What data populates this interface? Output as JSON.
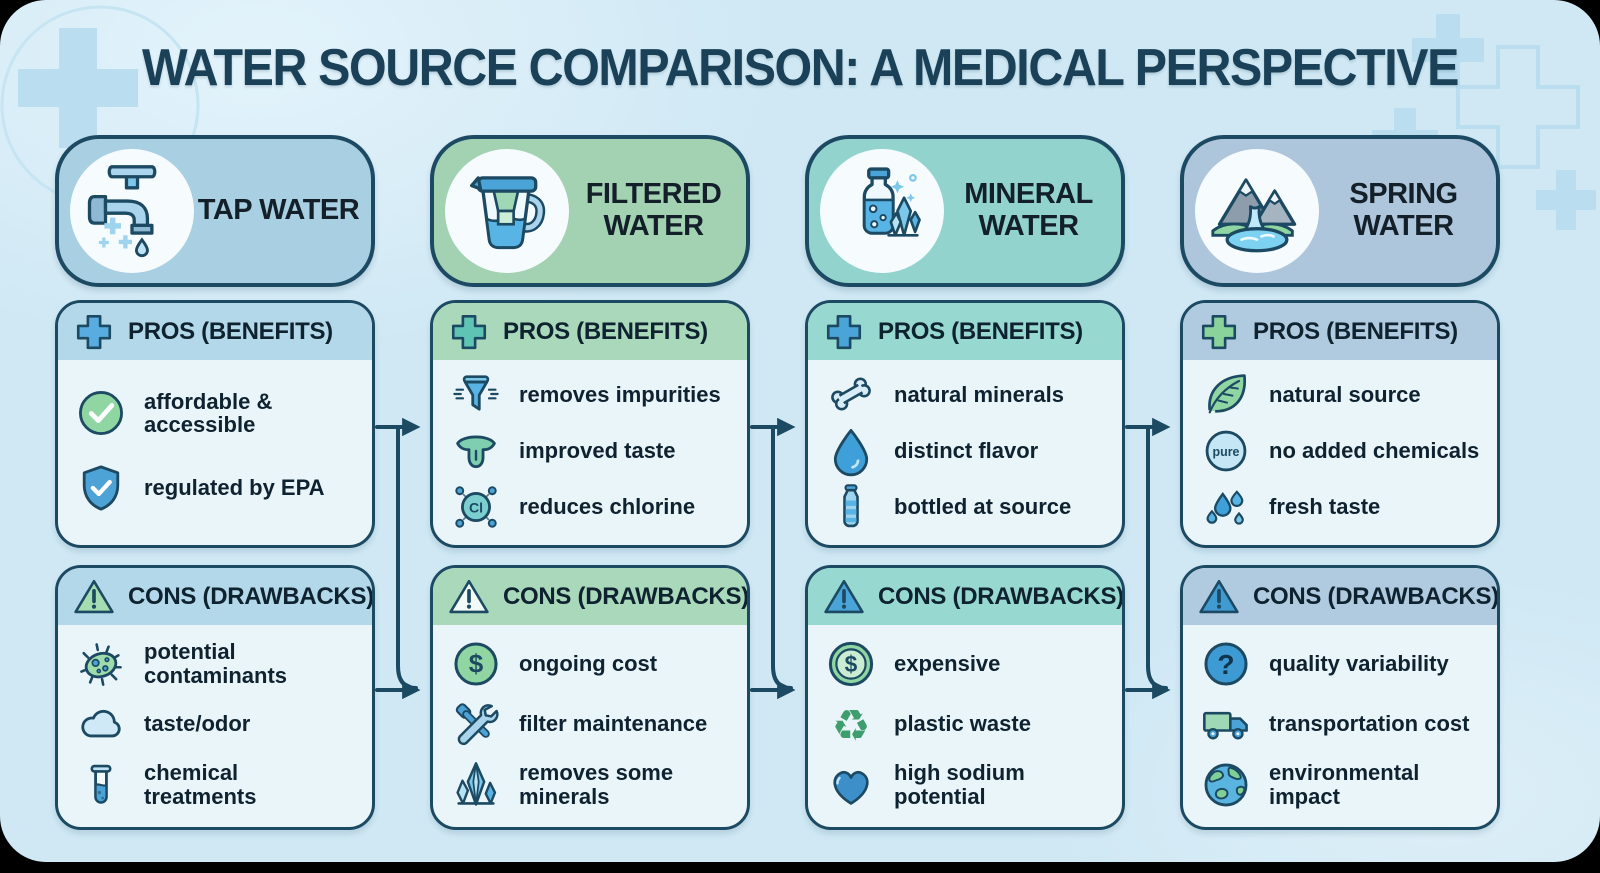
{
  "title": "WATER SOURCE COMPARISON: A MEDICAL PERSPECTIVE",
  "section_labels": {
    "pros": "PROS (BENEFITS)",
    "cons": "CONS (DRAWBACKS)"
  },
  "icon_labels": {
    "chlorine": "Cl",
    "pure": "pure",
    "dollar": "$",
    "question": "?",
    "recycle": "♻"
  },
  "colors": {
    "background": "#cfe8f4",
    "outline": "#1d4a63",
    "title_text": "#1a4157",
    "body_text": "#0f2230",
    "box_bg": "#eaf5f9"
  },
  "columns": [
    {
      "id": "tap-water",
      "name": "TAP WATER",
      "header_icon": "faucet-icon",
      "theme": {
        "header_bg": "#a9cfe2",
        "band_bg": "#b3d8e9",
        "cross_color": "#58ace0",
        "triangle_color": "#a5dcb0"
      },
      "pros": [
        {
          "icon": "check-circle-icon",
          "text": "affordable & accessible"
        },
        {
          "icon": "shield-check-icon",
          "text": "regulated by EPA"
        }
      ],
      "cons": [
        {
          "icon": "germ-icon",
          "text": "potential contaminants"
        },
        {
          "icon": "cloud-icon",
          "text": "taste/odor"
        },
        {
          "icon": "test-tube-icon",
          "text": "chemical treatments"
        }
      ]
    },
    {
      "id": "filtered-water",
      "name": "FILTERED WATER",
      "header_icon": "pitcher-icon",
      "theme": {
        "header_bg": "#a3d2b2",
        "band_bg": "#a9d8ba",
        "cross_color": "#5fc4b4",
        "triangle_color": "#f2fbf7"
      },
      "pros": [
        {
          "icon": "funnel-icon",
          "text": "removes impurities"
        },
        {
          "icon": "tongue-icon",
          "text": "improved taste"
        },
        {
          "icon": "chlorine-icon",
          "text": "reduces chlorine"
        }
      ],
      "cons": [
        {
          "icon": "dollar-circle-icon",
          "text": "ongoing cost"
        },
        {
          "icon": "tools-icon",
          "text": "filter maintenance"
        },
        {
          "icon": "crystals-icon",
          "text": "removes some minerals"
        }
      ]
    },
    {
      "id": "mineral-water",
      "name": "MINERAL WATER",
      "header_icon": "mineral-bottle-icon",
      "theme": {
        "header_bg": "#92d3cd",
        "band_bg": "#97d8d1",
        "cross_color": "#4aa4d8",
        "triangle_color": "#4aa4d8"
      },
      "pros": [
        {
          "icon": "bone-icon",
          "text": "natural minerals"
        },
        {
          "icon": "water-drop-icon",
          "text": "distinct flavor"
        },
        {
          "icon": "bottle-icon",
          "text": "bottled at source"
        }
      ],
      "cons": [
        {
          "icon": "coin-icon",
          "text": "expensive"
        },
        {
          "icon": "recycle-icon",
          "text": "plastic waste"
        },
        {
          "icon": "heart-icon",
          "text": "high sodium potential"
        }
      ]
    },
    {
      "id": "spring-water",
      "name": "SPRING WATER",
      "header_icon": "spring-icon",
      "theme": {
        "header_bg": "#aec6dc",
        "band_bg": "#b0cbe0",
        "cross_color": "#8ad49c",
        "triangle_color": "#3f9bd1"
      },
      "pros": [
        {
          "icon": "leaf-icon",
          "text": "natural source"
        },
        {
          "icon": "pure-icon",
          "text": "no added chemicals"
        },
        {
          "icon": "splash-icon",
          "text": "fresh taste"
        }
      ],
      "cons": [
        {
          "icon": "question-circle-icon",
          "text": "quality variability"
        },
        {
          "icon": "truck-icon",
          "text": "transportation cost"
        },
        {
          "icon": "globe-icon",
          "text": "environmental impact"
        }
      ]
    }
  ]
}
